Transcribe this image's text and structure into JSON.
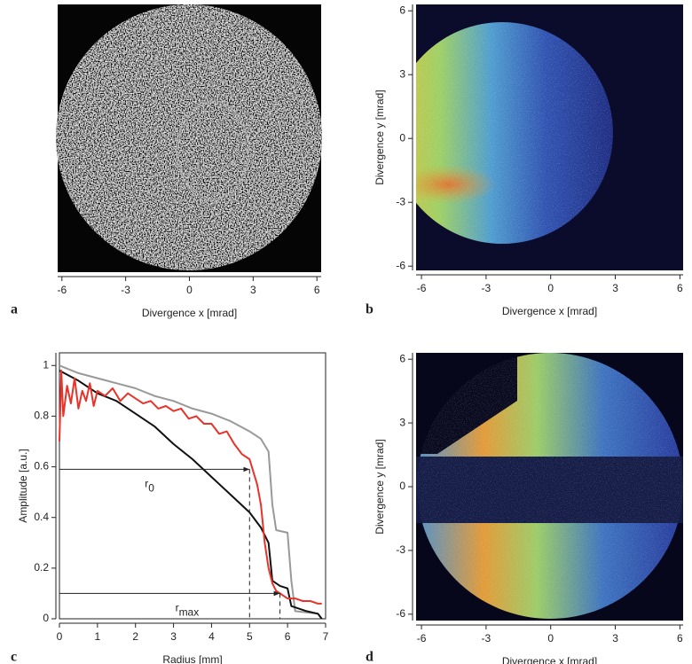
{
  "chart_data": [
    {
      "type": "image",
      "panel": "a",
      "xlabel": "Divergence x [mrad]",
      "xlim": [
        -6.2,
        6.2
      ],
      "xticks": [
        -6,
        -3,
        0,
        3,
        6
      ]
    },
    {
      "type": "line",
      "panel": "c",
      "xlabel": "Radius [mm]",
      "ylabel": "Amplitude [a.u.]",
      "xlim": [
        0,
        7
      ],
      "ylim": [
        0,
        1.05
      ],
      "xticks": [
        0,
        1,
        2,
        3,
        4,
        5,
        6,
        7
      ],
      "yticks": [
        0,
        0.2,
        0.4,
        0.6,
        0.8,
        1
      ],
      "series": [
        {
          "color": "#999999",
          "x": [
            0,
            0.5,
            1,
            1.5,
            2,
            2.5,
            3,
            3.5,
            4,
            4.5,
            5,
            5.3,
            5.5,
            5.6,
            5.7,
            6.0,
            6.1,
            6.2,
            6.8,
            6.9
          ],
          "values": [
            1.0,
            0.97,
            0.95,
            0.93,
            0.91,
            0.88,
            0.86,
            0.83,
            0.81,
            0.78,
            0.74,
            0.71,
            0.66,
            0.45,
            0.35,
            0.34,
            0.15,
            0.03,
            0.02,
            0.0
          ]
        },
        {
          "color": "#111111",
          "x": [
            0,
            0.5,
            1,
            1.5,
            2,
            2.5,
            3,
            3.5,
            4,
            4.5,
            5,
            5.3,
            5.5,
            5.6,
            5.8,
            6.0,
            6.1,
            6.5,
            6.8,
            6.9
          ],
          "values": [
            0.98,
            0.94,
            0.89,
            0.86,
            0.81,
            0.76,
            0.69,
            0.63,
            0.56,
            0.49,
            0.42,
            0.36,
            0.3,
            0.15,
            0.13,
            0.12,
            0.05,
            0.03,
            0.02,
            0.0
          ]
        },
        {
          "color": "#e8332a",
          "x": [
            0,
            0.05,
            0.1,
            0.2,
            0.3,
            0.4,
            0.5,
            0.6,
            0.7,
            0.8,
            0.9,
            1.0,
            1.2,
            1.4,
            1.6,
            1.8,
            2.0,
            2.2,
            2.4,
            2.6,
            2.8,
            3.0,
            3.2,
            3.4,
            3.6,
            3.8,
            4.0,
            4.2,
            4.4,
            4.6,
            4.8,
            5.0,
            5.1,
            5.2,
            5.3,
            5.4,
            5.5,
            5.6,
            5.7,
            5.8,
            6.0,
            6.2,
            6.4,
            6.6,
            6.8,
            6.9
          ],
          "values": [
            0.7,
            0.98,
            0.8,
            0.92,
            0.85,
            0.95,
            0.83,
            0.9,
            0.86,
            0.93,
            0.84,
            0.9,
            0.88,
            0.91,
            0.86,
            0.89,
            0.87,
            0.85,
            0.86,
            0.83,
            0.84,
            0.82,
            0.83,
            0.79,
            0.8,
            0.77,
            0.77,
            0.73,
            0.74,
            0.69,
            0.65,
            0.63,
            0.58,
            0.53,
            0.45,
            0.3,
            0.2,
            0.14,
            0.11,
            0.1,
            0.08,
            0.08,
            0.07,
            0.07,
            0.06,
            0.06
          ]
        }
      ],
      "annotations": [
        {
          "label": "r",
          "sub": "0",
          "x": 5,
          "y": 0.59
        },
        {
          "label": "r",
          "sub": "max",
          "x": 5.8,
          "y": 0.1
        }
      ]
    },
    {
      "type": "image",
      "panel": "b",
      "xlabel": "Divergence x [mrad]",
      "ylabel": "Divergence y [mrad]",
      "xlim": [
        -6.25,
        6.15
      ],
      "ylim": [
        -6.2,
        6.3
      ],
      "xticks": [
        -6,
        -3,
        0,
        3,
        6
      ],
      "yticks": [
        -6,
        -3,
        0,
        3,
        6
      ]
    },
    {
      "type": "image",
      "panel": "d",
      "xlabel": "Divergence x [mrad]",
      "ylabel": "Divergence y [mrad]",
      "xlim": [
        -6.25,
        6.15
      ],
      "ylim": [
        -6.3,
        6.3
      ],
      "xticks": [
        -6,
        -3,
        0,
        3,
        6
      ],
      "yticks": [
        -6,
        -3,
        0,
        3,
        6
      ]
    }
  ]
}
